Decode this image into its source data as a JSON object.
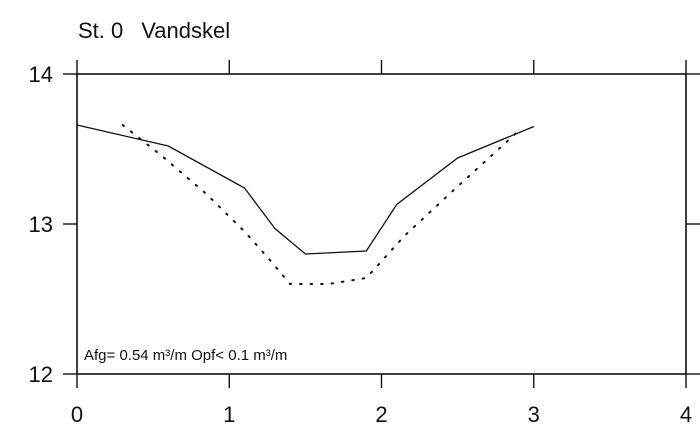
{
  "title": {
    "station": "St. 0",
    "name": "Vandskel"
  },
  "annotation": "Afg= 0.54 m³/m  Opf< 0.1 m³/m",
  "chart_data": {
    "type": "line",
    "title": "St. 0   Vandskel",
    "xlabel": "",
    "ylabel": "",
    "xlim": [
      0,
      4
    ],
    "ylim": [
      12,
      14
    ],
    "xticks": [
      0,
      1,
      2,
      3,
      4
    ],
    "yticks": [
      12,
      13,
      14
    ],
    "grid": false,
    "series": [
      {
        "style": "solid",
        "x": [
          0,
          0.6,
          1.1,
          1.3,
          1.5,
          1.9,
          2.1,
          2.5,
          3.0
        ],
        "y": [
          13.66,
          13.52,
          13.24,
          12.97,
          12.8,
          12.82,
          13.13,
          13.44,
          13.65
        ]
      },
      {
        "style": "dotted",
        "x": [
          0.3,
          0.55,
          0.85,
          1.1,
          1.25,
          1.4,
          1.65,
          1.9,
          2.15,
          2.5,
          2.9
        ],
        "y": [
          13.66,
          13.46,
          13.2,
          12.95,
          12.78,
          12.6,
          12.6,
          12.64,
          12.92,
          13.25,
          13.62
        ]
      }
    ]
  }
}
